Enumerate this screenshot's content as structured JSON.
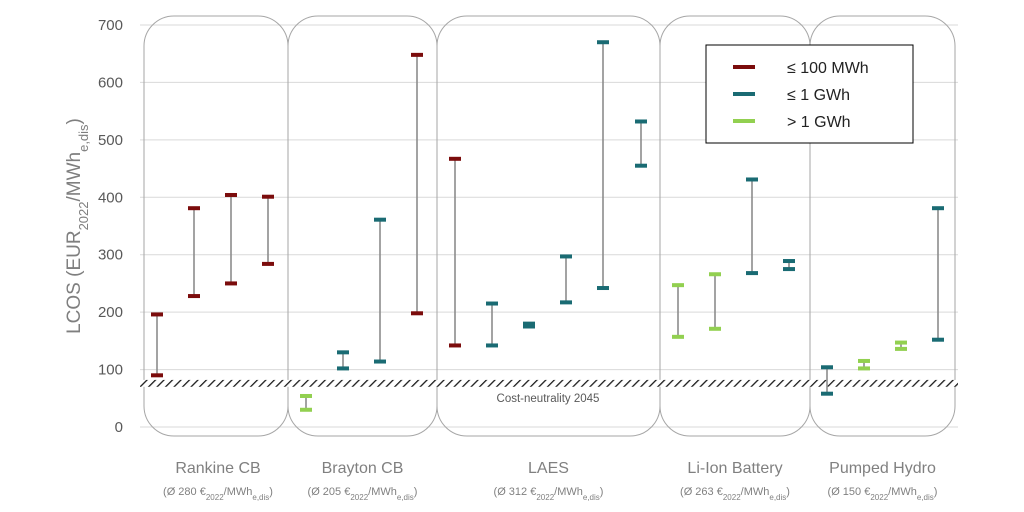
{
  "chart_data": {
    "type": "range",
    "ylabel": "LCOS (EUR2022/MWhe,dis)",
    "ylabel_parts": {
      "main": "LCOS (EUR",
      "sub1": "2022",
      "mid": "/MWh",
      "sub2": "e,dis",
      "end": ")"
    },
    "ylim": [
      0,
      700
    ],
    "yticks": [
      "0",
      "100",
      "200",
      "300",
      "400",
      "500",
      "600",
      "700"
    ],
    "grid": true,
    "legend": {
      "position": "top-right",
      "entries": [
        {
          "label": "≤ 100 MWh",
          "color": "#7b0c0c"
        },
        {
          "label": "≤ 1 GWh",
          "color": "#1a6b73"
        },
        {
          "label": "> 1 GWh",
          "color": "#92d050"
        }
      ]
    },
    "annotation": {
      "label": "Cost-neutrality 2045",
      "range": [
        70,
        82
      ]
    },
    "groups": [
      {
        "name": "Rankine CB",
        "subtitle": "(Ø 280 €2022/MWhe,dis)",
        "sub_parts": {
          "pre": "(Ø 280 €",
          "s1": "2022",
          "mid": "/MWh",
          "s2": "e,dis",
          "end": ")"
        }
      },
      {
        "name": "Brayton CB",
        "subtitle": "(Ø 205 €2022/MWhe,dis)",
        "sub_parts": {
          "pre": "(Ø 205 €",
          "s1": "2022",
          "mid": "/MWh",
          "s2": "e,dis",
          "end": ")"
        }
      },
      {
        "name": "LAES",
        "subtitle": "(Ø 312 €2022/MWhe,dis)",
        "sub_parts": {
          "pre": "(Ø 312 €",
          "s1": "2022",
          "mid": "/MWh",
          "s2": "e,dis",
          "end": ")"
        }
      },
      {
        "name": "Li-Ion Battery",
        "subtitle": "(Ø 263 €2022/MWhe,dis)",
        "sub_parts": {
          "pre": "(Ø 263 €",
          "s1": "2022",
          "mid": "/MWh",
          "s2": "e,dis",
          "end": ")"
        }
      },
      {
        "name": "Pumped Hydro",
        "subtitle": "(Ø 150 €2022/MWhe,dis)",
        "sub_parts": {
          "pre": "(Ø 150 €",
          "s1": "2022",
          "mid": "/MWh",
          "s2": "e,dis",
          "end": ")"
        }
      }
    ],
    "ranges": [
      {
        "group": "Rankine CB",
        "class": "≤ 100 MWh",
        "low": 90,
        "high": 196
      },
      {
        "group": "Rankine CB",
        "class": "≤ 100 MWh",
        "low": 228,
        "high": 381
      },
      {
        "group": "Rankine CB",
        "class": "≤ 100 MWh",
        "low": 250,
        "high": 404
      },
      {
        "group": "Rankine CB",
        "class": "≤ 100 MWh",
        "low": 284,
        "high": 401
      },
      {
        "group": "Brayton CB",
        "class": "> 1 GWh",
        "low": 30,
        "high": 54
      },
      {
        "group": "Brayton CB",
        "class": "≤ 1 GWh",
        "low": 102,
        "high": 130
      },
      {
        "group": "Brayton CB",
        "class": "≤ 1 GWh",
        "low": 114,
        "high": 361
      },
      {
        "group": "Brayton CB",
        "class": "≤ 100 MWh",
        "low": 198,
        "high": 648
      },
      {
        "group": "LAES",
        "class": "≤ 100 MWh",
        "low": 142,
        "high": 467
      },
      {
        "group": "LAES",
        "class": "≤ 1 GWh",
        "low": 142,
        "high": 215
      },
      {
        "group": "LAES",
        "class": "≤ 1 GWh",
        "low": 175,
        "high": 180
      },
      {
        "group": "LAES",
        "class": "≤ 1 GWh",
        "low": 217,
        "high": 297
      },
      {
        "group": "LAES",
        "class": "≤ 1 GWh",
        "low": 242,
        "high": 670
      },
      {
        "group": "LAES",
        "class": "≤ 1 GWh",
        "low": 455,
        "high": 532
      },
      {
        "group": "Li-Ion Battery",
        "class": "> 1 GWh",
        "low": 157,
        "high": 247
      },
      {
        "group": "Li-Ion Battery",
        "class": "> 1 GWh",
        "low": 171,
        "high": 266
      },
      {
        "group": "Li-Ion Battery",
        "class": "≤ 1 GWh",
        "low": 268,
        "high": 431
      },
      {
        "group": "Li-Ion Battery",
        "class": "≤ 1 GWh",
        "low": 275,
        "high": 289
      },
      {
        "group": "Pumped Hydro",
        "class": "≤ 1 GWh",
        "low": 58,
        "high": 104
      },
      {
        "group": "Pumped Hydro",
        "class": "> 1 GWh",
        "low": 102,
        "high": 115
      },
      {
        "group": "Pumped Hydro",
        "class": "> 1 GWh",
        "low": 136,
        "high": 147
      },
      {
        "group": "Pumped Hydro",
        "class": "≤ 1 GWh",
        "low": 152,
        "high": 381
      }
    ]
  }
}
